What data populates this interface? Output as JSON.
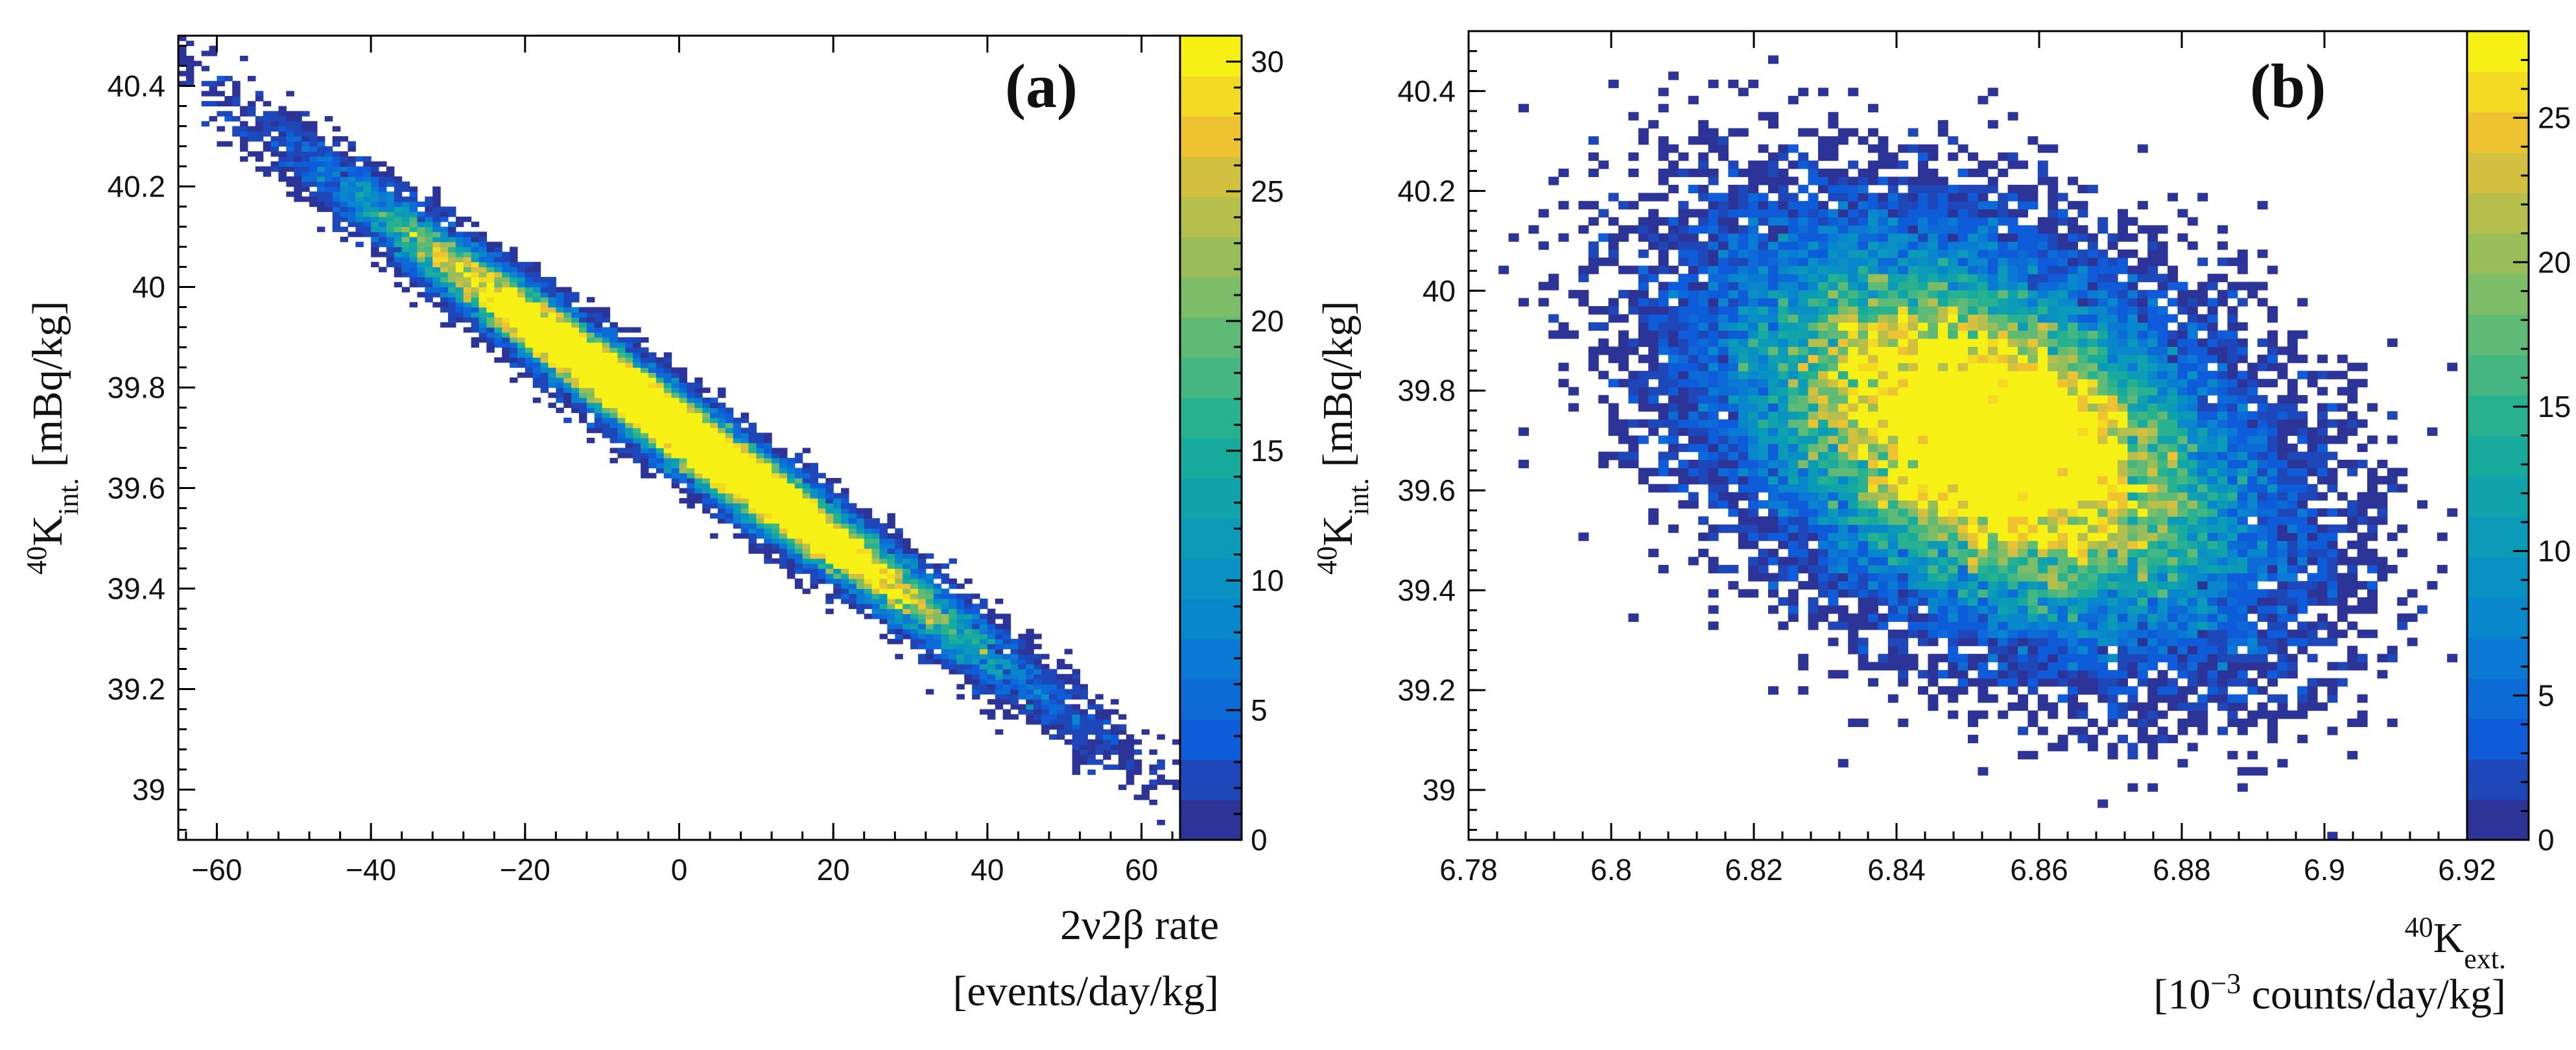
{
  "chart_data": [
    {
      "type": "heatmap",
      "panel_label": "(a)",
      "xlabel": {
        "line1": "2ν2β rate",
        "line2": "[events/day/kg]"
      },
      "ylabel": {
        "base_sup": "40",
        "base": "K",
        "sub": "int.",
        "unit": " [mBq/kg]"
      },
      "xlim": [
        -65,
        65
      ],
      "ylim": [
        38.9,
        40.5
      ],
      "x_ticks": [
        -60,
        -40,
        -20,
        0,
        20,
        40,
        60
      ],
      "x_tick_labels": [
        "−60",
        "−40",
        "−20",
        "0",
        "20",
        "40",
        "60"
      ],
      "y_ticks": [
        39,
        39.2,
        39.4,
        39.6,
        39.8,
        40,
        40.2,
        40.4
      ],
      "y_tick_labels": [
        "39",
        "39.2",
        "39.4",
        "39.6",
        "39.8",
        "40",
        "40.2",
        "40.4"
      ],
      "colorbar": {
        "range": [
          0,
          31
        ],
        "ticks": [
          0,
          5,
          10,
          15,
          20,
          25,
          30
        ],
        "tick_labels": [
          "0",
          "5",
          "10",
          "15",
          "20",
          "25",
          "30"
        ]
      },
      "distribution": {
        "kind": "correlated-gaussian",
        "mean_x": 0,
        "mean_y": 39.715,
        "sigma_x": 20,
        "sigma_y": 0.225,
        "correlation": -0.985,
        "n_events": 40000,
        "bins_x": 130,
        "bins_y": 160
      }
    },
    {
      "type": "heatmap",
      "panel_label": "(b)",
      "xlabel": {
        "line1_sup": "40",
        "line1_base": "K",
        "line1_sub": "ext.",
        "line2_pre": "[10",
        "line2_sup": "−3",
        "line2_post": " counts/day/kg]"
      },
      "ylabel": {
        "base_sup": "40",
        "base": "K",
        "sub": "int.",
        "unit": " [mBq/kg]"
      },
      "xlim": [
        6.78,
        6.92
      ],
      "ylim": [
        38.9,
        40.52
      ],
      "x_ticks": [
        6.78,
        6.8,
        6.82,
        6.84,
        6.86,
        6.88,
        6.9,
        6.92
      ],
      "x_tick_labels": [
        "6.78",
        "6.8",
        "6.82",
        "6.84",
        "6.86",
        "6.88",
        "6.9",
        "6.92"
      ],
      "y_ticks": [
        39,
        39.2,
        39.4,
        39.6,
        39.8,
        40,
        40.2,
        40.4
      ],
      "y_tick_labels": [
        "39",
        "39.2",
        "39.4",
        "39.6",
        "39.8",
        "40",
        "40.2",
        "40.4"
      ],
      "colorbar": {
        "range": [
          0,
          28
        ],
        "ticks": [
          0,
          5,
          10,
          15,
          20,
          25
        ],
        "tick_labels": [
          "0",
          "5",
          "10",
          "15",
          "20",
          "25"
        ]
      },
      "distribution": {
        "kind": "correlated-gaussian",
        "mean_x": 6.853,
        "mean_y": 39.71,
        "sigma_x": 0.0185,
        "sigma_y": 0.2,
        "correlation": -0.42,
        "n_events": 40000,
        "bins_x": 100,
        "bins_y": 100
      }
    }
  ]
}
